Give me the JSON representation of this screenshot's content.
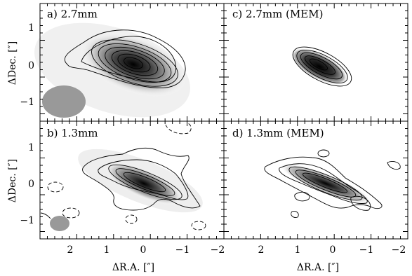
{
  "figure": {
    "xlabel": "ΔR.A. [″]",
    "ylabel": "ΔDec. [″]",
    "x_tick_labels": [
      "2",
      "1",
      "0",
      "−1",
      "−2"
    ],
    "y_tick_labels": [
      "1",
      "0",
      "−1"
    ]
  },
  "panels": [
    {
      "id": "a",
      "title": "a) 2.7mm"
    },
    {
      "id": "c",
      "title": "c) 2.7mm (MEM)"
    },
    {
      "id": "b",
      "title": "b) 1.3mm"
    },
    {
      "id": "d",
      "title": "d) 1.3mm (MEM)"
    }
  ],
  "colors": {
    "beam": "#999999",
    "contour": "#000000",
    "frame": "#000000"
  }
}
